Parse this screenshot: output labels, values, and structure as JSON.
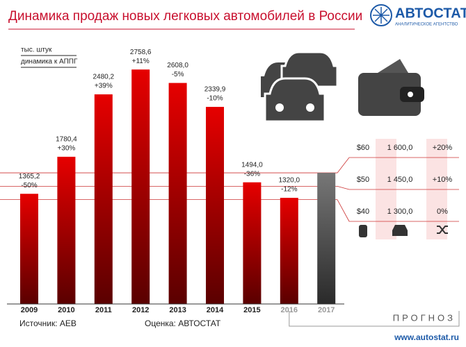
{
  "chart_data": {
    "type": "bar",
    "title": "Динамика продаж новых легковых автомобилей в России",
    "logo": "АВТОСТАТ",
    "logo_subtitle": "АНАЛИТИЧЕСКОЕ АГЕНТСТВО",
    "unit_label": "тыс. штук",
    "change_label": "динамика к АППГ",
    "categories": [
      "2009",
      "2010",
      "2011",
      "2012",
      "2013",
      "2014",
      "2015",
      "2016",
      "2017"
    ],
    "values": [
      1365.2,
      1780.4,
      2480.2,
      2758.6,
      2608.0,
      2339.9,
      1494.0,
      1320.0,
      1600
    ],
    "value_labels": [
      "1365,2",
      "1780,4",
      "2480,2",
      "2758,6",
      "2608,0",
      "2339,9",
      "1494,0",
      "1320,0",
      null
    ],
    "changes": [
      "-50%",
      "+30%",
      "+39%",
      "+11%",
      "-5%",
      "-10%",
      "-36%",
      "-12%",
      null
    ],
    "color": "#d40000",
    "forecast_color": "#666666",
    "ylim": [
      130,
      2900
    ],
    "scenarios": [
      {
        "oil": "$60",
        "sales": 1600,
        "sales_label": "1 600,0",
        "change": "+20%"
      },
      {
        "oil": "$50",
        "sales": 1450,
        "sales_label": "1 450,0",
        "change": "+10%"
      },
      {
        "oil": "$40",
        "sales": 1300,
        "sales_label": "1 300,0",
        "change": "0%"
      }
    ],
    "source": "Источник: АЕВ",
    "estimate": "Оценка: АВТОСТАТ",
    "forecast_label": "ПРОГНОЗ",
    "url": "www.autostat.ru"
  }
}
